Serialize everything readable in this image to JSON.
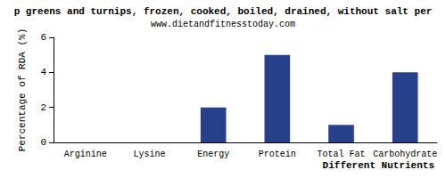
{
  "chart_data": {
    "type": "bar",
    "title": "p greens and turnips, frozen, cooked, boiled, drained, without salt per",
    "subtitle": "www.dietandfitnesstoday.com",
    "x_label": "Different Nutrients",
    "y_label": "Percentage of RDA (%)",
    "categories": [
      "Arginine",
      "Lysine",
      "Energy",
      "Protein",
      "Total Fat",
      "Carbohydrate"
    ],
    "values": [
      0,
      0,
      2,
      5,
      1,
      4
    ],
    "color": "#27408b",
    "ylim": [
      0,
      6
    ],
    "yticks": [
      0,
      2,
      4,
      6
    ],
    "grid": false
  }
}
